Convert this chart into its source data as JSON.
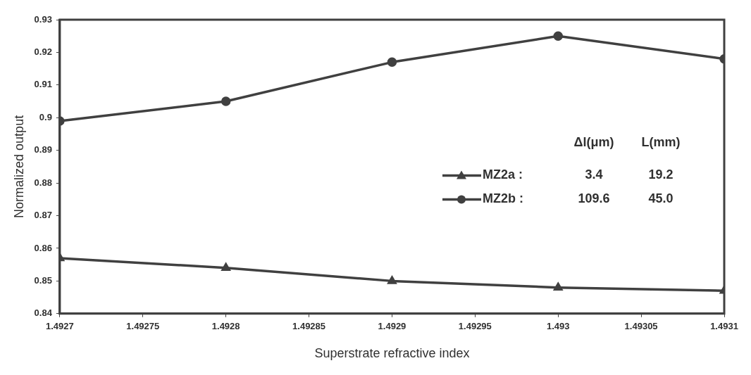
{
  "chart_data": {
    "type": "line",
    "xlabel": "Superstrate refractive index",
    "ylabel": "Normalized output",
    "x": [
      1.4927,
      1.4928,
      1.4929,
      1.493,
      1.4931
    ],
    "series": [
      {
        "name": "MZ2a :",
        "color": "#404040",
        "marker": "triangle",
        "values": [
          0.857,
          0.854,
          0.85,
          0.848,
          0.847
        ]
      },
      {
        "name": "MZ2b :",
        "color": "#404040",
        "marker": "circle",
        "values": [
          0.899,
          0.905,
          0.917,
          0.925,
          0.918
        ]
      }
    ],
    "annotations": [
      "Δl(μm)",
      "L(mm)",
      "3.4",
      "19.2",
      "109.6",
      "45.0"
    ],
    "xlim": [
      1.4927,
      1.4931
    ],
    "xticks": [
      1.4927,
      1.49275,
      1.4928,
      1.49285,
      1.4929,
      1.49295,
      1.493,
      1.49305,
      1.4931
    ],
    "ylim": [
      0.84,
      0.93
    ],
    "yticks": [
      0.84,
      0.85,
      0.86,
      0.87,
      0.88,
      0.89,
      {
        "value": 0.9,
        "label": "0.9"
      },
      0.91,
      0.92,
      0.93
    ],
    "grid": false,
    "legend": "right",
    "line_style": "solid"
  }
}
